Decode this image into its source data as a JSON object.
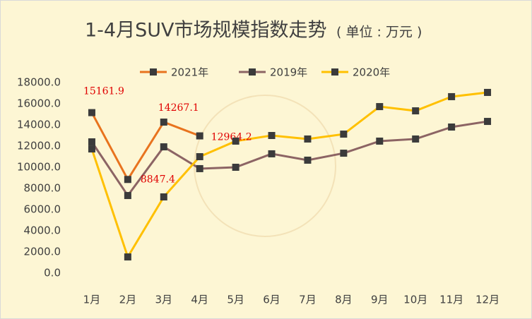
{
  "chart_data": {
    "type": "line",
    "title": "1-4月SUV市场规模指数走势",
    "subtitle": "( 单位 : 万元 )",
    "categories": [
      "1月",
      "2月",
      "3月",
      "4月",
      "5月",
      "6月",
      "7月",
      "8月",
      "9月",
      "10月",
      "11月",
      "12月"
    ],
    "series": [
      {
        "name": "2021年",
        "color": "#e8731e",
        "values": [
          15161.9,
          8847.4,
          14267.1,
          12964.2,
          null,
          null,
          null,
          null,
          null,
          null,
          null,
          null
        ],
        "show_labels": true
      },
      {
        "name": "2019年",
        "color": "#8c6464",
        "values": [
          12400,
          7330,
          11930,
          9870,
          10000,
          11270,
          10670,
          11330,
          12470,
          12670,
          13800,
          14330
        ]
      },
      {
        "name": "2020年",
        "color": "#ffc000",
        "values": [
          11730,
          1530,
          7200,
          11000,
          12470,
          13000,
          12670,
          13130,
          15730,
          15330,
          16670,
          17070
        ]
      }
    ],
    "marker_color": "#3b3b3b",
    "label_color": "#e00000",
    "ylim": [
      0,
      18000
    ],
    "yticks": [
      {
        "value": 0,
        "label": "0.0"
      },
      {
        "value": 2000,
        "label": "2000.0"
      },
      {
        "value": 4000,
        "label": "4000.0"
      },
      {
        "value": 6000,
        "label": "6000.0"
      },
      {
        "value": 8000,
        "label": "8000.0"
      },
      {
        "value": 10000,
        "label": "10000.0"
      },
      {
        "value": 12000,
        "label": "12000.0"
      },
      {
        "value": 14000,
        "label": "14000.0"
      },
      {
        "value": 16000,
        "label": "16000.0"
      },
      {
        "value": 18000,
        "label": "18000.0"
      }
    ],
    "grid": false,
    "legend": "top"
  }
}
